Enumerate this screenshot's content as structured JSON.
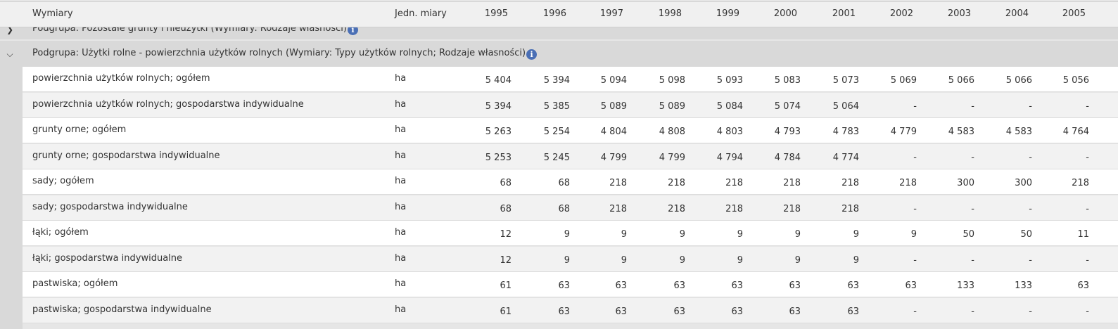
{
  "header": {
    "dimension_label": "Wymiary",
    "unit_label": "Jedn. miary",
    "years": [
      "1995",
      "1996",
      "1997",
      "1998",
      "1999",
      "2000",
      "2001",
      "2002",
      "2003",
      "2004",
      "2005"
    ]
  },
  "groups": [
    {
      "label": "Podgrupa: Pozostałe grunty i nieużytki (Wymiary: Rodzaje własności)",
      "expanded": false
    },
    {
      "label": "Podgrupa: Użytki rolne - powierzchnia użytków rolnych (Wymiary: Typy użytków rolnych; Rodzaje własności)",
      "expanded": true
    }
  ],
  "icons": {
    "collapsed": "chevron-right-icon",
    "expanded": "chevron-down-icon",
    "info": "info-icon"
  },
  "colors": {
    "info": "#4a6fb5",
    "group_bg": "#d9d9d9",
    "header_bg": "#f0f0f0"
  },
  "rows": [
    {
      "name": "powierzchnia użytków rolnych; ogółem",
      "unit": "ha",
      "values": [
        "5 404",
        "5 394",
        "5 094",
        "5 098",
        "5 093",
        "5 083",
        "5 073",
        "5 069",
        "5 066",
        "5 066",
        "5 056"
      ]
    },
    {
      "name": "powierzchnia użytków rolnych; gospodarstwa indywidualne",
      "unit": "ha",
      "values": [
        "5 394",
        "5 385",
        "5 089",
        "5 089",
        "5 084",
        "5 074",
        "5 064",
        "-",
        "-",
        "-",
        "-"
      ]
    },
    {
      "name": "grunty orne; ogółem",
      "unit": "ha",
      "values": [
        "5 263",
        "5 254",
        "4 804",
        "4 808",
        "4 803",
        "4 793",
        "4 783",
        "4 779",
        "4 583",
        "4 583",
        "4 764"
      ]
    },
    {
      "name": "grunty orne; gospodarstwa indywidualne",
      "unit": "ha",
      "values": [
        "5 253",
        "5 245",
        "4 799",
        "4 799",
        "4 794",
        "4 784",
        "4 774",
        "-",
        "-",
        "-",
        "-"
      ]
    },
    {
      "name": "sady; ogółem",
      "unit": "ha",
      "values": [
        "68",
        "68",
        "218",
        "218",
        "218",
        "218",
        "218",
        "218",
        "300",
        "300",
        "218"
      ]
    },
    {
      "name": "sady; gospodarstwa indywidualne",
      "unit": "ha",
      "values": [
        "68",
        "68",
        "218",
        "218",
        "218",
        "218",
        "218",
        "-",
        "-",
        "-",
        "-"
      ]
    },
    {
      "name": "łąki; ogółem",
      "unit": "ha",
      "values": [
        "12",
        "9",
        "9",
        "9",
        "9",
        "9",
        "9",
        "9",
        "50",
        "50",
        "11"
      ]
    },
    {
      "name": "łąki; gospodarstwa indywidualne",
      "unit": "ha",
      "values": [
        "12",
        "9",
        "9",
        "9",
        "9",
        "9",
        "9",
        "-",
        "-",
        "-",
        "-"
      ]
    },
    {
      "name": "pastwiska; ogółem",
      "unit": "ha",
      "values": [
        "61",
        "63",
        "63",
        "63",
        "63",
        "63",
        "63",
        "63",
        "133",
        "133",
        "63"
      ]
    },
    {
      "name": "pastwiska; gospodarstwa indywidualne",
      "unit": "ha",
      "values": [
        "61",
        "63",
        "63",
        "63",
        "63",
        "63",
        "63",
        "-",
        "-",
        "-",
        "-"
      ]
    }
  ]
}
